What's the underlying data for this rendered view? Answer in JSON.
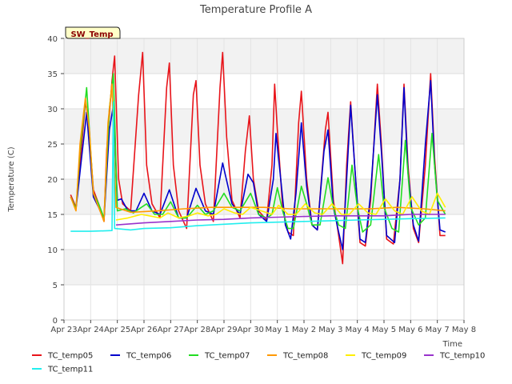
{
  "chart_data": {
    "type": "line",
    "title": "Temperature Profile A",
    "xlabel": "Time",
    "ylabel": "Temperature (C)",
    "ylim": [
      0,
      40
    ],
    "yticks": [
      0,
      5,
      10,
      15,
      20,
      25,
      30,
      35,
      40
    ],
    "xlim_days": [
      0,
      15
    ],
    "xtick_labels": [
      "Apr 23",
      "Apr 24",
      "Apr 25",
      "Apr 26",
      "Apr 27",
      "Apr 28",
      "Apr 29",
      "Apr 30",
      "May 1",
      "May 2",
      "May 3",
      "May 4",
      "May 5",
      "May 6",
      "May 7",
      "May 8"
    ],
    "background_bands": true,
    "grid": true,
    "legend_position": "bottom",
    "badge": {
      "text": "SW_Temp"
    },
    "series": [
      {
        "name": "TC_temp05",
        "color": "#e8141a",
        "points": [
          [
            0.25,
            17.8
          ],
          [
            0.45,
            16.0
          ],
          [
            0.6,
            22
          ],
          [
            0.8,
            31
          ],
          [
            0.9,
            29
          ],
          [
            1.1,
            18.5
          ],
          [
            1.3,
            16.5
          ],
          [
            1.5,
            14.0
          ],
          [
            1.6,
            24
          ],
          [
            1.8,
            34
          ],
          [
            1.9,
            37.5
          ],
          [
            2.05,
            20
          ],
          [
            2.2,
            16.5
          ],
          [
            2.5,
            15.5
          ],
          [
            2.8,
            32
          ],
          [
            2.95,
            38
          ],
          [
            3.1,
            22
          ],
          [
            3.3,
            16.5
          ],
          [
            3.6,
            14.5
          ],
          [
            3.85,
            33
          ],
          [
            3.95,
            36.5
          ],
          [
            4.1,
            22
          ],
          [
            4.3,
            15.5
          ],
          [
            4.6,
            13.0
          ],
          [
            4.85,
            32
          ],
          [
            4.95,
            34
          ],
          [
            5.1,
            22
          ],
          [
            5.3,
            16.5
          ],
          [
            5.6,
            14.0
          ],
          [
            5.85,
            33
          ],
          [
            5.95,
            38
          ],
          [
            6.1,
            26
          ],
          [
            6.3,
            17
          ],
          [
            6.6,
            14.5
          ],
          [
            6.8,
            24
          ],
          [
            6.95,
            29
          ],
          [
            7.1,
            20
          ],
          [
            7.3,
            15.5
          ],
          [
            7.6,
            14.2
          ],
          [
            7.8,
            22
          ],
          [
            7.9,
            33.5
          ],
          [
            8.0,
            27
          ],
          [
            8.2,
            16
          ],
          [
            8.4,
            12.5
          ],
          [
            8.6,
            12.0
          ],
          [
            8.8,
            28
          ],
          [
            8.9,
            32.5
          ],
          [
            9.1,
            20
          ],
          [
            9.3,
            13.5
          ],
          [
            9.5,
            12.8
          ],
          [
            9.8,
            27
          ],
          [
            9.9,
            29.5
          ],
          [
            10.1,
            17
          ],
          [
            10.3,
            12.0
          ],
          [
            10.45,
            8.0
          ],
          [
            10.6,
            22
          ],
          [
            10.75,
            31
          ],
          [
            10.9,
            22
          ],
          [
            11.1,
            11.0
          ],
          [
            11.3,
            10.5
          ],
          [
            11.5,
            17
          ],
          [
            11.75,
            33.5
          ],
          [
            11.9,
            25
          ],
          [
            12.1,
            11.5
          ],
          [
            12.35,
            10.8
          ],
          [
            12.6,
            20
          ],
          [
            12.75,
            33.5
          ],
          [
            12.9,
            22
          ],
          [
            13.1,
            13.0
          ],
          [
            13.3,
            11.0
          ],
          [
            13.55,
            22
          ],
          [
            13.75,
            35
          ],
          [
            13.9,
            23
          ],
          [
            14.1,
            12.0
          ],
          [
            14.3,
            12.0
          ]
        ]
      },
      {
        "name": "TC_temp06",
        "color": "#0000cc",
        "points": [
          [
            0.25,
            17.5
          ],
          [
            0.45,
            15.8
          ],
          [
            0.6,
            21
          ],
          [
            0.85,
            29.5
          ],
          [
            1.1,
            17.5
          ],
          [
            1.3,
            16.0
          ],
          [
            1.5,
            14.2
          ],
          [
            1.7,
            27
          ],
          [
            1.85,
            30.5
          ],
          [
            2.0,
            17.0
          ],
          [
            2.15,
            17.2
          ],
          [
            2.4,
            15.5
          ],
          [
            2.7,
            15.5
          ],
          [
            3.0,
            18.0
          ],
          [
            3.3,
            15.5
          ],
          [
            3.6,
            15.0
          ],
          [
            3.95,
            18.5
          ],
          [
            4.3,
            14.5
          ],
          [
            4.6,
            14.5
          ],
          [
            4.95,
            18.7
          ],
          [
            5.3,
            15.5
          ],
          [
            5.6,
            15.0
          ],
          [
            5.95,
            22.3
          ],
          [
            6.3,
            16.5
          ],
          [
            6.6,
            15.0
          ],
          [
            6.9,
            20.7
          ],
          [
            7.1,
            19.5
          ],
          [
            7.3,
            15.0
          ],
          [
            7.6,
            14.0
          ],
          [
            7.85,
            20
          ],
          [
            7.95,
            26.5
          ],
          [
            8.1,
            21
          ],
          [
            8.3,
            13.5
          ],
          [
            8.5,
            11.5
          ],
          [
            8.7,
            18
          ],
          [
            8.9,
            28
          ],
          [
            9.1,
            19
          ],
          [
            9.3,
            13.5
          ],
          [
            9.5,
            12.8
          ],
          [
            9.75,
            24
          ],
          [
            9.9,
            27
          ],
          [
            10.1,
            16
          ],
          [
            10.3,
            12.5
          ],
          [
            10.45,
            10.0
          ],
          [
            10.6,
            20
          ],
          [
            10.75,
            30.5
          ],
          [
            10.9,
            22
          ],
          [
            11.1,
            11.5
          ],
          [
            11.3,
            11.0
          ],
          [
            11.5,
            18
          ],
          [
            11.75,
            32
          ],
          [
            11.9,
            24
          ],
          [
            12.1,
            12.0
          ],
          [
            12.4,
            11.0
          ],
          [
            12.6,
            20
          ],
          [
            12.75,
            33
          ],
          [
            12.9,
            21
          ],
          [
            13.1,
            13.5
          ],
          [
            13.3,
            11.2
          ],
          [
            13.55,
            25
          ],
          [
            13.75,
            34
          ],
          [
            13.9,
            22
          ],
          [
            14.1,
            12.8
          ],
          [
            14.3,
            12.5
          ]
        ]
      },
      {
        "name": "TC_temp07",
        "color": "#22dd22",
        "points": [
          [
            0.25,
            17.5
          ],
          [
            0.45,
            15.8
          ],
          [
            0.6,
            24
          ],
          [
            0.85,
            33
          ],
          [
            1.1,
            18
          ],
          [
            1.3,
            16.5
          ],
          [
            1.5,
            14.5
          ],
          [
            1.7,
            30
          ],
          [
            1.85,
            35
          ],
          [
            2.0,
            15.5
          ],
          [
            2.3,
            15.8
          ],
          [
            2.6,
            15.2
          ],
          [
            2.9,
            16.0
          ],
          [
            3.1,
            16.5
          ],
          [
            3.4,
            15.0
          ],
          [
            3.7,
            15.0
          ],
          [
            4.0,
            16.8
          ],
          [
            4.3,
            14.5
          ],
          [
            4.6,
            14.5
          ],
          [
            5.0,
            16.3
          ],
          [
            5.3,
            15.0
          ],
          [
            5.6,
            15.5
          ],
          [
            6.0,
            18.0
          ],
          [
            6.3,
            16.0
          ],
          [
            6.6,
            15.5
          ],
          [
            7.0,
            18.0
          ],
          [
            7.3,
            15.0
          ],
          [
            7.6,
            14.5
          ],
          [
            7.8,
            15.0
          ],
          [
            8.0,
            18.8
          ],
          [
            8.2,
            15.5
          ],
          [
            8.4,
            13.0
          ],
          [
            8.6,
            13.0
          ],
          [
            8.9,
            19.0
          ],
          [
            9.1,
            16.5
          ],
          [
            9.3,
            13.5
          ],
          [
            9.6,
            13.5
          ],
          [
            9.9,
            20.2
          ],
          [
            10.1,
            16.0
          ],
          [
            10.3,
            13.5
          ],
          [
            10.55,
            13.0
          ],
          [
            10.8,
            22.0
          ],
          [
            11.0,
            16.0
          ],
          [
            11.2,
            12.5
          ],
          [
            11.5,
            13.5
          ],
          [
            11.8,
            23.5
          ],
          [
            12.0,
            16.0
          ],
          [
            12.3,
            13.0
          ],
          [
            12.55,
            12.5
          ],
          [
            12.8,
            25.5
          ],
          [
            13.0,
            16.0
          ],
          [
            13.3,
            13.5
          ],
          [
            13.55,
            14.5
          ],
          [
            13.8,
            26.5
          ],
          [
            14.0,
            17.0
          ],
          [
            14.3,
            15.0
          ]
        ]
      },
      {
        "name": "TC_temp08",
        "color": "#ff9900",
        "points": [
          [
            0.25,
            17.5
          ],
          [
            0.45,
            15.5
          ],
          [
            0.6,
            25
          ],
          [
            0.8,
            31.5
          ],
          [
            0.95,
            27
          ],
          [
            1.1,
            18
          ],
          [
            1.3,
            16.0
          ],
          [
            1.5,
            14.0
          ],
          [
            1.65,
            28
          ],
          [
            1.8,
            33.5
          ],
          [
            1.95,
            16.0
          ],
          [
            2.5,
            15.3
          ],
          [
            3.5,
            15.5
          ],
          [
            4.5,
            15.8
          ],
          [
            5.5,
            16.0
          ],
          [
            6.5,
            16.0
          ],
          [
            7.5,
            16.0
          ],
          [
            8.5,
            15.8
          ],
          [
            9.5,
            15.8
          ],
          [
            10.5,
            15.8
          ],
          [
            11.5,
            15.8
          ],
          [
            12.5,
            16.0
          ],
          [
            13.5,
            15.8
          ],
          [
            14.3,
            15.5
          ]
        ]
      },
      {
        "name": "TC_temp09",
        "color": "#ffee00",
        "points": [
          [
            1.95,
            14.2
          ],
          [
            2.4,
            14.5
          ],
          [
            2.9,
            15.0
          ],
          [
            3.2,
            14.8
          ],
          [
            3.6,
            14.5
          ],
          [
            3.9,
            15.2
          ],
          [
            4.3,
            14.5
          ],
          [
            4.7,
            14.8
          ],
          [
            5.0,
            15.2
          ],
          [
            5.4,
            14.8
          ],
          [
            5.7,
            15.0
          ],
          [
            6.0,
            15.8
          ],
          [
            6.4,
            15.2
          ],
          [
            6.7,
            15.0
          ],
          [
            7.0,
            16.0
          ],
          [
            7.4,
            15.5
          ],
          [
            7.8,
            15.0
          ],
          [
            8.05,
            16.3
          ],
          [
            8.4,
            15.0
          ],
          [
            8.7,
            15.0
          ],
          [
            9.05,
            16.5
          ],
          [
            9.4,
            15.2
          ],
          [
            9.7,
            15.0
          ],
          [
            10.05,
            16.5
          ],
          [
            10.4,
            15.0
          ],
          [
            10.7,
            15.0
          ],
          [
            11.05,
            16.5
          ],
          [
            11.4,
            15.2
          ],
          [
            11.7,
            15.0
          ],
          [
            12.05,
            17.2
          ],
          [
            12.4,
            15.5
          ],
          [
            12.7,
            15.0
          ],
          [
            13.05,
            17.5
          ],
          [
            13.4,
            15.5
          ],
          [
            13.7,
            15.0
          ],
          [
            14.0,
            18.0
          ],
          [
            14.3,
            16.0
          ]
        ]
      },
      {
        "name": "TC_temp10",
        "color": "#9933cc",
        "points": [
          [
            1.95,
            13.5
          ],
          [
            3.0,
            13.8
          ],
          [
            4.0,
            14.0
          ],
          [
            5.0,
            14.2
          ],
          [
            6.0,
            14.3
          ],
          [
            7.0,
            14.5
          ],
          [
            8.0,
            14.6
          ],
          [
            9.0,
            14.7
          ],
          [
            10.0,
            14.8
          ],
          [
            11.0,
            14.8
          ],
          [
            12.0,
            14.8
          ],
          [
            13.0,
            15.0
          ],
          [
            14.3,
            15.0
          ]
        ]
      },
      {
        "name": "TC_temp11",
        "color": "#22eeee",
        "points": [
          [
            0.25,
            12.6
          ],
          [
            1.0,
            12.6
          ],
          [
            1.8,
            12.7
          ],
          [
            1.85,
            31
          ],
          [
            1.9,
            13.0
          ],
          [
            2.5,
            12.8
          ],
          [
            3.0,
            13.0
          ],
          [
            4.0,
            13.1
          ],
          [
            5.0,
            13.4
          ],
          [
            6.0,
            13.6
          ],
          [
            7.0,
            13.8
          ],
          [
            8.0,
            13.9
          ],
          [
            9.0,
            14.0
          ],
          [
            10.0,
            14.1
          ],
          [
            11.0,
            14.2
          ],
          [
            12.0,
            14.3
          ],
          [
            13.0,
            14.4
          ],
          [
            14.3,
            14.5
          ]
        ]
      }
    ]
  }
}
